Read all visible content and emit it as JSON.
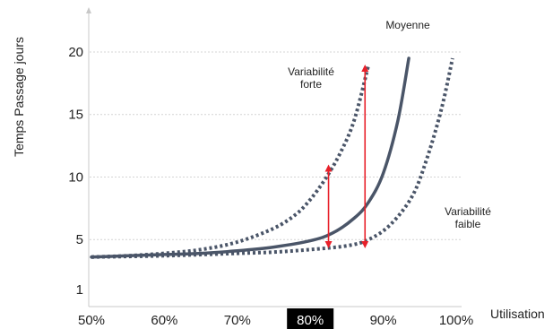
{
  "chart_data": {
    "type": "line",
    "xlabel": "Utilisation",
    "ylabel": "Temps Passage jours",
    "xlim": [
      50,
      100
    ],
    "ylim": [
      1,
      22
    ],
    "x_ticks": [
      {
        "value": 50,
        "label": "50%"
      },
      {
        "value": 60,
        "label": "60%"
      },
      {
        "value": 70,
        "label": "70%"
      },
      {
        "value": 80,
        "label": "80%",
        "highlight": true
      },
      {
        "value": 90,
        "label": "90%"
      },
      {
        "value": 100,
        "label": "100%"
      }
    ],
    "y_ticks": [
      {
        "value": 1,
        "label": "1"
      },
      {
        "value": 5,
        "label": "5"
      },
      {
        "value": 10,
        "label": "10"
      },
      {
        "value": 15,
        "label": "15"
      },
      {
        "value": 20,
        "label": "20"
      }
    ],
    "gridlines_y": [
      5,
      10,
      15,
      20
    ],
    "series": [
      {
        "name": "Variabilité forte",
        "style": "dotted",
        "color": "#4a5568",
        "points": [
          [
            50,
            3.6
          ],
          [
            55,
            3.7
          ],
          [
            60,
            3.9
          ],
          [
            65,
            4.2
          ],
          [
            70,
            4.8
          ],
          [
            75,
            5.9
          ],
          [
            78,
            7.0
          ],
          [
            80,
            8.2
          ],
          [
            82,
            9.8
          ],
          [
            84,
            11.8
          ],
          [
            86,
            14.5
          ],
          [
            88,
            19.0
          ]
        ]
      },
      {
        "name": "Moyenne",
        "style": "solid",
        "color": "#4a5568",
        "points": [
          [
            50,
            3.6
          ],
          [
            55,
            3.7
          ],
          [
            60,
            3.8
          ],
          [
            65,
            3.9
          ],
          [
            70,
            4.1
          ],
          [
            75,
            4.4
          ],
          [
            80,
            4.9
          ],
          [
            83,
            5.5
          ],
          [
            86,
            6.7
          ],
          [
            88,
            8.0
          ],
          [
            90,
            10.3
          ],
          [
            92,
            14.5
          ],
          [
            93.5,
            19.5
          ]
        ]
      },
      {
        "name": "Variabilité faible",
        "style": "dotted",
        "color": "#4a5568",
        "points": [
          [
            50,
            3.6
          ],
          [
            60,
            3.7
          ],
          [
            70,
            3.9
          ],
          [
            75,
            4.0
          ],
          [
            80,
            4.2
          ],
          [
            85,
            4.5
          ],
          [
            88,
            5.0
          ],
          [
            91,
            6.2
          ],
          [
            94,
            8.5
          ],
          [
            96,
            11.5
          ],
          [
            98,
            15.5
          ],
          [
            99.5,
            19.5
          ]
        ]
      }
    ],
    "arrows": [
      {
        "x": 82.5,
        "y_from": 4.3,
        "y_to": 11.0,
        "color": "#e8202a"
      },
      {
        "x": 87.5,
        "y_from": 4.3,
        "y_to": 19.0,
        "color": "#e8202a"
      }
    ],
    "annotations": [
      {
        "lines": [
          "Moyenne"
        ]
      },
      {
        "lines": [
          "Variabilité",
          "forte"
        ]
      },
      {
        "lines": [
          "Variabilité",
          "faible"
        ]
      }
    ],
    "highlight_color": "#000000",
    "grid": true,
    "legend": "none"
  }
}
